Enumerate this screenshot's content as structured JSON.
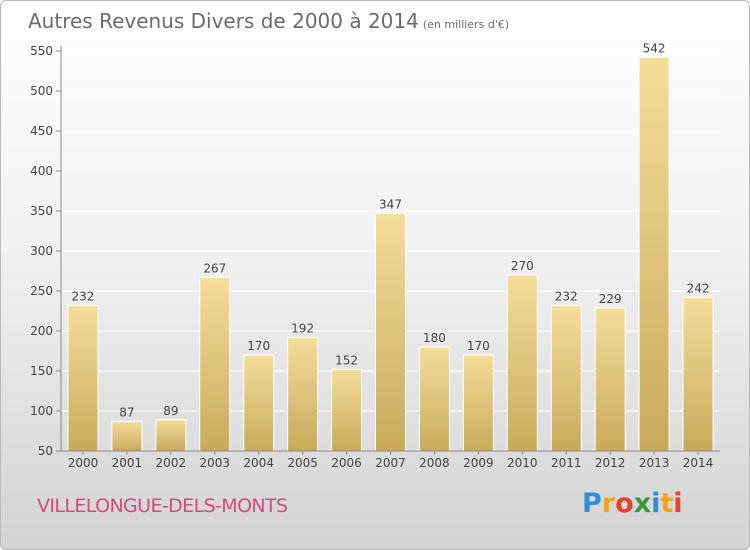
{
  "header": {
    "title": "Autres Revenus Divers de 2000 à 2014",
    "unit": "(en milliers d'€)"
  },
  "footer": {
    "commune": "VILLELONGUE-DELS-MONTS"
  },
  "logo": {
    "text": "Proxiti",
    "letters": [
      {
        "ch": "P",
        "color": "#2f8fd6"
      },
      {
        "ch": "r",
        "color": "#f2a21a"
      },
      {
        "ch": "o",
        "color": "#e8402a"
      },
      {
        "ch": "x",
        "color": "#3a9a3a"
      },
      {
        "ch": "i",
        "color": "#2f8fd6"
      },
      {
        "ch": "t",
        "color": "#f2a21a"
      },
      {
        "ch": "i",
        "color": "#e8402a"
      }
    ]
  },
  "colors": {
    "bar_top": "#f5dd9a",
    "bar_bottom": "#c8aa5a",
    "axis": "#8a8a8a",
    "grid": "#ffffff",
    "text": "#444444"
  },
  "chart_data": {
    "type": "bar",
    "title": "Autres Revenus Divers de 2000 à 2014",
    "subtitle": "(en milliers d'€)",
    "categories": [
      "2000",
      "2001",
      "2002",
      "2003",
      "2004",
      "2005",
      "2006",
      "2007",
      "2008",
      "2009",
      "2010",
      "2011",
      "2012",
      "2013",
      "2014"
    ],
    "values": [
      232,
      87,
      89,
      267,
      170,
      192,
      152,
      347,
      180,
      170,
      270,
      232,
      229,
      542,
      242
    ],
    "ylim": [
      50,
      550
    ],
    "yticks": [
      50,
      100,
      150,
      200,
      250,
      300,
      350,
      400,
      450,
      500,
      550
    ],
    "grid": true,
    "xlabel": "",
    "ylabel": ""
  }
}
